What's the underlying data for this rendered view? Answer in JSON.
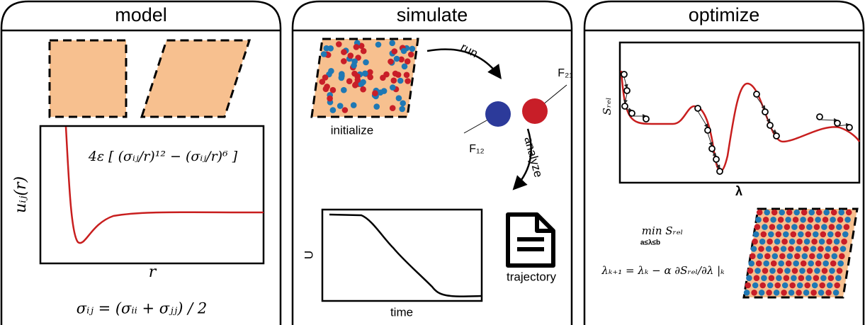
{
  "panels": [
    {
      "title": "model",
      "y_label": "uᵢⱼ(r)",
      "x_label": "r",
      "potential": "4ε [ (σᵢⱼ/r)¹² − (σᵢⱼ/r)⁶ ]",
      "mixing_rule": "σᵢⱼ = (σᵢᵢ + σⱼⱼ) / 2"
    },
    {
      "title": "simulate",
      "initialize": "initialize",
      "run": "run",
      "force_21": "F₂₁",
      "force_12": "F₁₂",
      "analyze": "analyze",
      "y_label": "U",
      "x_label": "time",
      "output": "trajectory"
    },
    {
      "title": "optimize",
      "y_label": "Sᵣₑₗ",
      "x_label": "λ",
      "objective": "min Sᵣₑₗ",
      "constraint": "a≤λ≤b",
      "update_rule": "λₖ₊₁ = λₖ − α ∂Sᵣₑₗ/∂λ |ₖ"
    }
  ]
}
